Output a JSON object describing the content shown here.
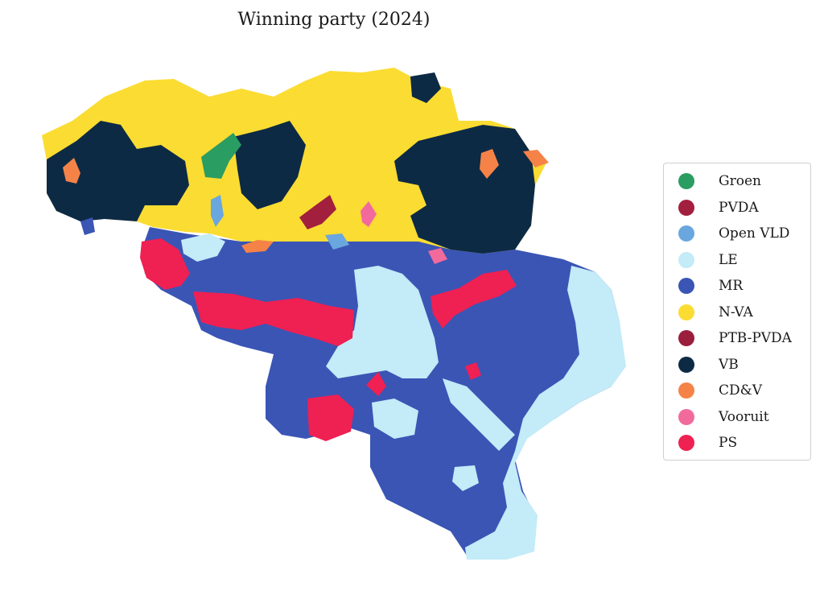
{
  "title": "Winning party (2024)",
  "legend": [
    {
      "label": "Groen",
      "color": "#2a9d62"
    },
    {
      "label": "PVDA",
      "color": "#a21f3e"
    },
    {
      "label": "Open VLD",
      "color": "#6aa7df"
    },
    {
      "label": "LE",
      "color": "#c3ebf8"
    },
    {
      "label": "MR",
      "color": "#3b55b5"
    },
    {
      "label": "N-VA",
      "color": "#fbdc32"
    },
    {
      "label": "PTB-PVDA",
      "color": "#9b1e3d"
    },
    {
      "label": "VB",
      "color": "#0d2a45"
    },
    {
      "label": "CD&V",
      "color": "#f58347"
    },
    {
      "label": "Vooruit",
      "color": "#f26a9c"
    },
    {
      "label": "PS",
      "color": "#ef2052"
    }
  ]
}
